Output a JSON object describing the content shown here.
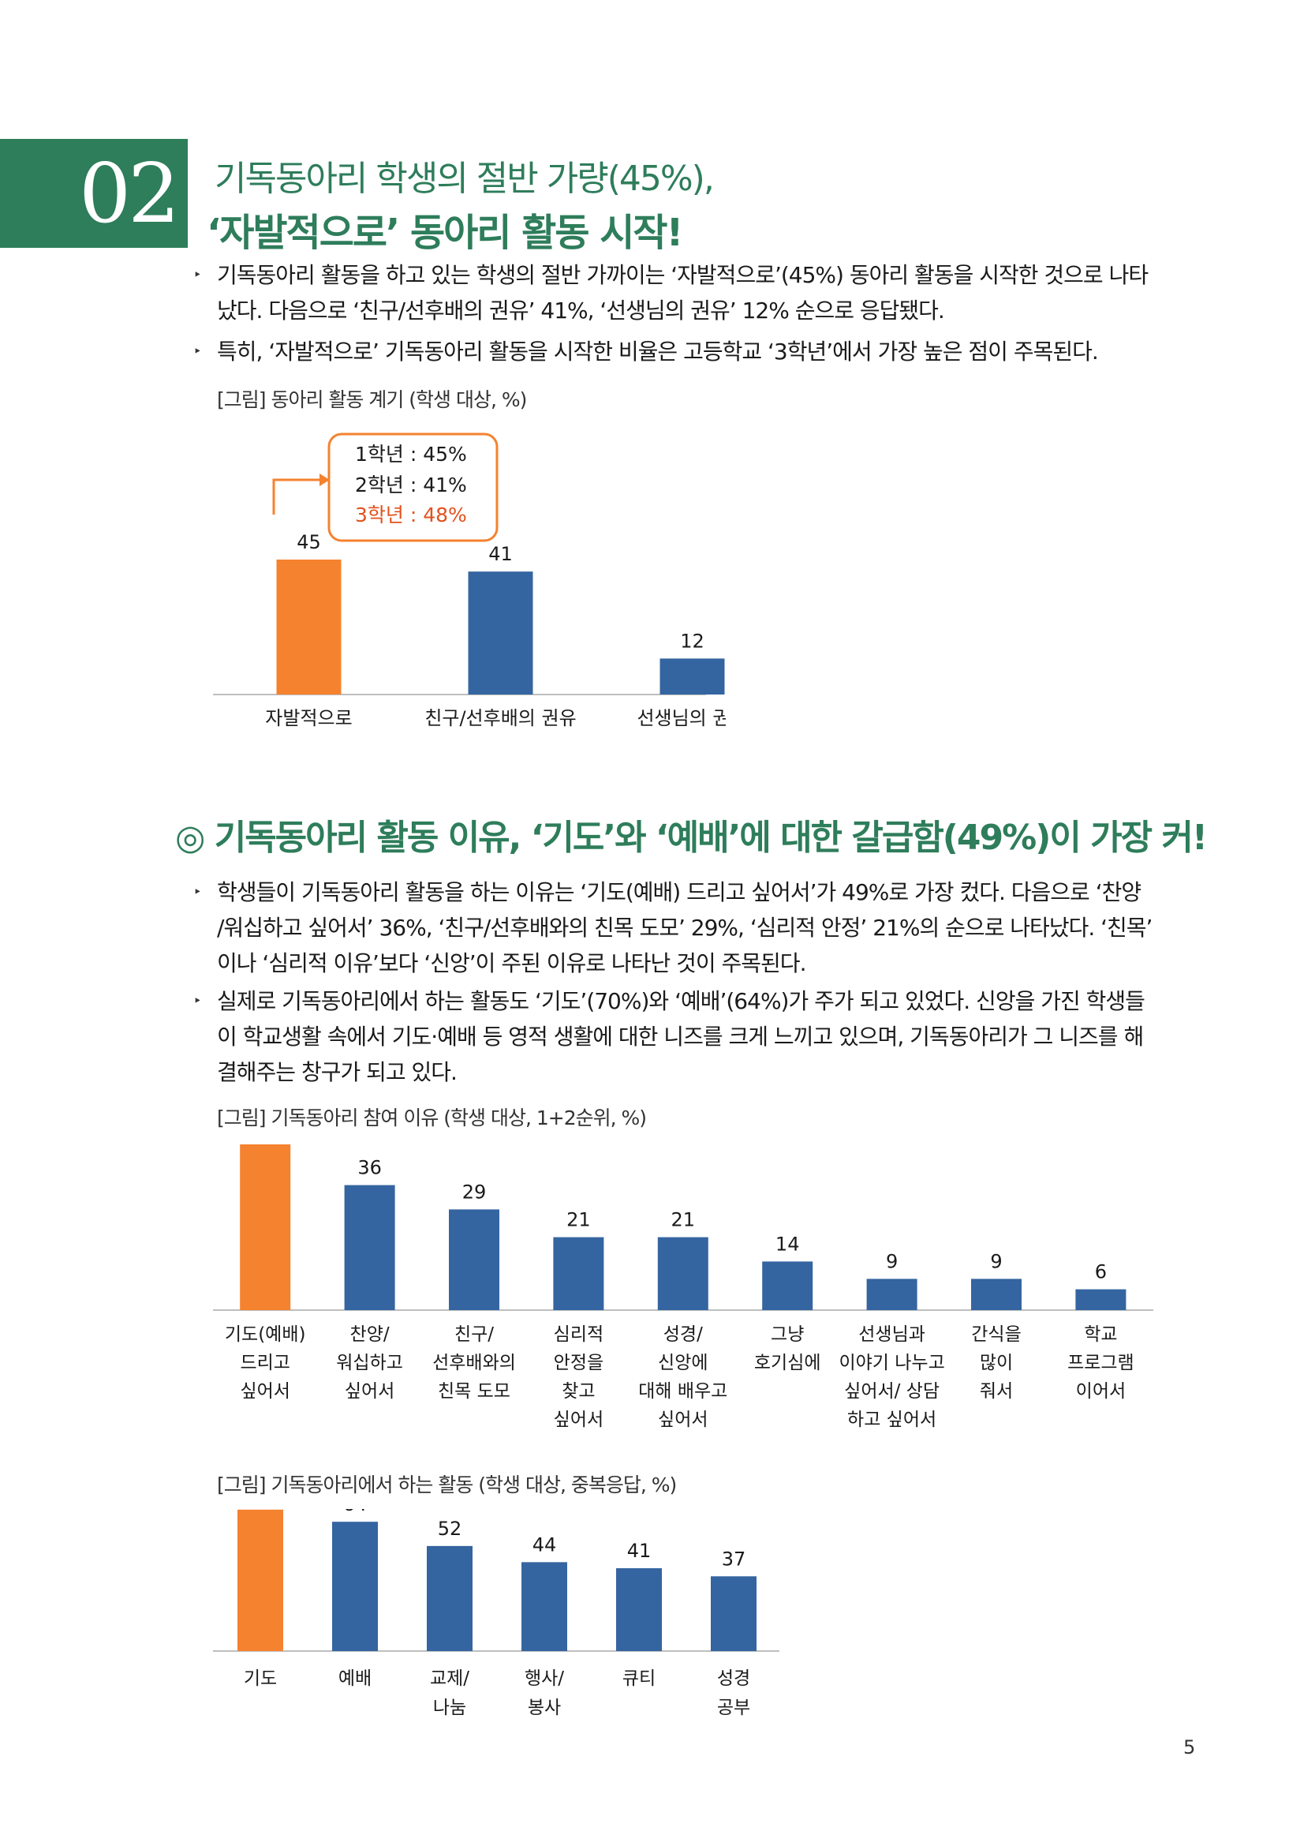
{
  "section": {
    "number": "02",
    "title_line1": "기독동아리 학생의 절반 가량(45%),",
    "title_line2": "‘자발적으로’ 동아리 활동 시작!"
  },
  "bullets1": [
    {
      "line1": "기독동아리 활동을 하고 있는 학생의 절반 가까이는 ‘자발적으로’(45%) 동아리 활동을 시작한 것으로 나타",
      "line2": "났다. 다음으로 ‘친구/선후배의 권유’ 41%, ‘선생님의 권유’ 12% 순으로 응답됐다."
    },
    {
      "line1": "특히, ‘자발적으로’ 기독동아리 활동을 시작한 비율은 고등학교 ‘3학년’에서 가장 높은 점이 주목된다."
    }
  ],
  "subsection": {
    "title": "◎ 기독동아리 활동 이유, ‘기도’와 ‘예배’에 대한 갈급함(49%)이 가장 커!"
  },
  "bullets2": [
    {
      "line1": "학생들이 기독동아리 활동을 하는 이유는 ‘기도(예배) 드리고 싶어서’가 49%로 가장 컸다. 다음으로 ‘찬양",
      "line2": "/워십하고 싶어서’ 36%, ‘친구/선후배와의 친목 도모’ 29%, ‘심리적 안정’ 21%의 순으로 나타났다. ‘친목’",
      "line3": "이나 ‘심리적 이유’보다 ‘신앙’이 주된 이유로 나타난 것이 주목된다."
    },
    {
      "line1": "실제로 기독동아리에서 하는 활동도 ‘기도’(70%)와 ‘예배’(64%)가 주가 되고 있었다. 신앙을 가진 학생들",
      "line2": "이 학교생활 속에서 기도·예배 등 영적 생활에 대한 니즈를 크게 느끼고 있으며, 기독동아리가 그 니즈를 해",
      "line3": "결해주는 창구가 되고 있다."
    }
  ],
  "chart_data": [
    {
      "type": "bar",
      "title": "[그림] 동아리 활동 계기 (학생 대상, %)",
      "categories": [
        [
          "자발적으로"
        ],
        [
          "친구/선후배의 권유"
        ],
        [
          "선생님의 권유"
        ]
      ],
      "values": [
        45,
        41,
        12
      ],
      "colors": [
        "#f5822f",
        "#3565a0",
        "#3565a0"
      ],
      "ylim": [
        0,
        50
      ],
      "annotation": {
        "lines": [
          "1학년 : 45%",
          "2학년 : 41%",
          "3학년 : 48%"
        ],
        "highlight_color": "#e2511c",
        "border_color": "#f5822f"
      }
    },
    {
      "type": "bar",
      "title": "[그림] 기독동아리 참여 이유 (학생 대상, 1+2순위, %)",
      "categories": [
        [
          "기도(예배)",
          "드리고",
          "싶어서"
        ],
        [
          "찬양/",
          "워십하고",
          "싶어서"
        ],
        [
          "친구/",
          "선후배와의",
          "친목 도모"
        ],
        [
          "심리적",
          "안정을",
          "찾고",
          "싶어서"
        ],
        [
          "성경/",
          "신앙에",
          "대해 배우고",
          "싶어서"
        ],
        [
          "그냥",
          "호기심에"
        ],
        [
          "선생님과",
          "이야기 나누고",
          "싶어서/ 상담",
          "하고 싶어서"
        ],
        [
          "간식을",
          "많이",
          "줘서"
        ],
        [
          "학교",
          "프로그램",
          "이어서"
        ]
      ],
      "values": [
        49,
        36,
        29,
        21,
        21,
        14,
        9,
        9,
        6
      ],
      "colors": [
        "#f5822f",
        "#3565a0",
        "#3565a0",
        "#3565a0",
        "#3565a0",
        "#3565a0",
        "#3565a0",
        "#3565a0",
        "#3565a0"
      ],
      "ylim": [
        0,
        50
      ]
    },
    {
      "type": "bar",
      "title": "[그림] 기독동아리에서 하는 활동 (학생 대상, 중복응답, %)",
      "categories": [
        [
          "기도"
        ],
        [
          "예배"
        ],
        [
          "교제/",
          "나눔"
        ],
        [
          "행사/",
          "봉사"
        ],
        [
          "큐티"
        ],
        [
          "성경",
          "공부"
        ]
      ],
      "values": [
        70,
        64,
        52,
        44,
        41,
        37
      ],
      "colors": [
        "#f5822f",
        "#3565a0",
        "#3565a0",
        "#3565a0",
        "#3565a0",
        "#3565a0"
      ],
      "ylim": [
        0,
        75
      ]
    }
  ],
  "page_number": "5"
}
